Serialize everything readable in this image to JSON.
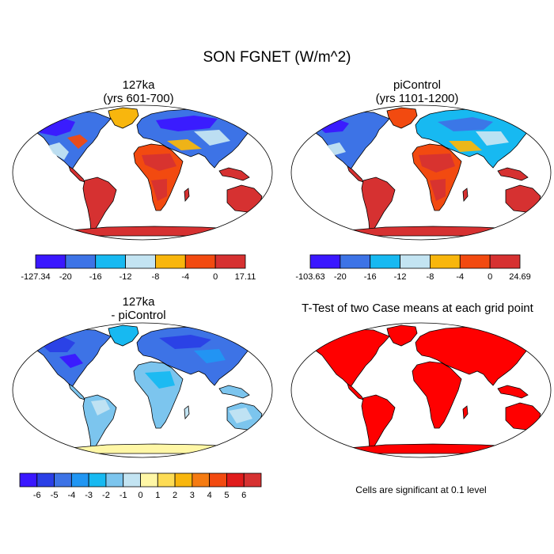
{
  "figure": {
    "title": "SON FGNET (W/m^2)"
  },
  "panels": [
    {
      "id": "p1",
      "title_line1": "127ka",
      "title_line2": "(yrs 601-700)"
    },
    {
      "id": "p2",
      "title_line1": "piControl",
      "title_line2": "(yrs 1101-1200)"
    },
    {
      "id": "p3",
      "title_line1": "127ka",
      "title_line2": "- piControl"
    },
    {
      "id": "p4",
      "title_line1": "T-Test of two Case means at each grid point",
      "title_line2": ""
    }
  ],
  "colorbars": [
    {
      "id": "cb1",
      "labels": [
        "-127.34",
        "-20",
        "-16",
        "-12",
        "-8",
        "-4",
        "0",
        "17.11"
      ],
      "colors": [
        "#3a17ff",
        "#3d73e6",
        "#17b9f1",
        "#c3e4f2",
        "#f8b60d",
        "#f24a10",
        "#d63131"
      ]
    },
    {
      "id": "cb2",
      "labels": [
        "-103.63",
        "-20",
        "-16",
        "-12",
        "-8",
        "-4",
        "0",
        "24.69"
      ],
      "colors": [
        "#3a17ff",
        "#3d73e6",
        "#17b9f1",
        "#c3e4f2",
        "#f8b60d",
        "#f24a10",
        "#d63131"
      ]
    },
    {
      "id": "cb3",
      "labels": [
        "-6",
        "-5",
        "-4",
        "-3",
        "-2",
        "-1",
        "0",
        "1",
        "2",
        "3",
        "4",
        "5",
        "6"
      ],
      "colors": [
        "#3a17ff",
        "#2a3fe6",
        "#3d73e6",
        "#2196f3",
        "#17b9f1",
        "#7cc5ee",
        "#c3e4f2",
        "#fff7a6",
        "#fddc55",
        "#f8b60d",
        "#f57b12",
        "#f24a10",
        "#e01b1b",
        "#d63131"
      ]
    }
  ],
  "significance_note": "Cells are significant at 0.1 level",
  "colors": {
    "ttest_fill": "#ff0000"
  }
}
